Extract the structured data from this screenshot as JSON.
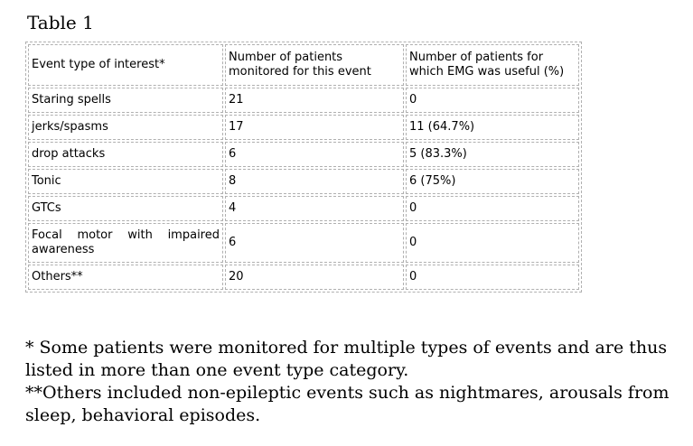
{
  "title": "Table 1",
  "table": {
    "headers": [
      "Event type of interest*",
      "Number of patients monitored for this event",
      "Number of patients for which EMG was useful (%)"
    ],
    "rows": [
      [
        "Staring spells",
        "21",
        "0"
      ],
      [
        "jerks/spasms",
        "17",
        "11 (64.7%)"
      ],
      [
        "drop attacks",
        "6",
        "5 (83.3%)"
      ],
      [
        "Tonic",
        "8",
        "6 (75%)"
      ],
      [
        "GTCs",
        "4",
        "0"
      ],
      [
        "Focal motor with impaired awareness",
        "6",
        "0"
      ],
      [
        "Others**",
        "20",
        "0"
      ]
    ]
  },
  "footnotes": [
    "* Some patients were monitored for multiple types of events and are thus listed in more than one event type category.",
    "**Others included non-epileptic events such as nightmares, arousals from sleep, behavioral episodes."
  ],
  "colors": {
    "border": "#b0b0b0",
    "text": "#000000",
    "background": "#ffffff"
  }
}
